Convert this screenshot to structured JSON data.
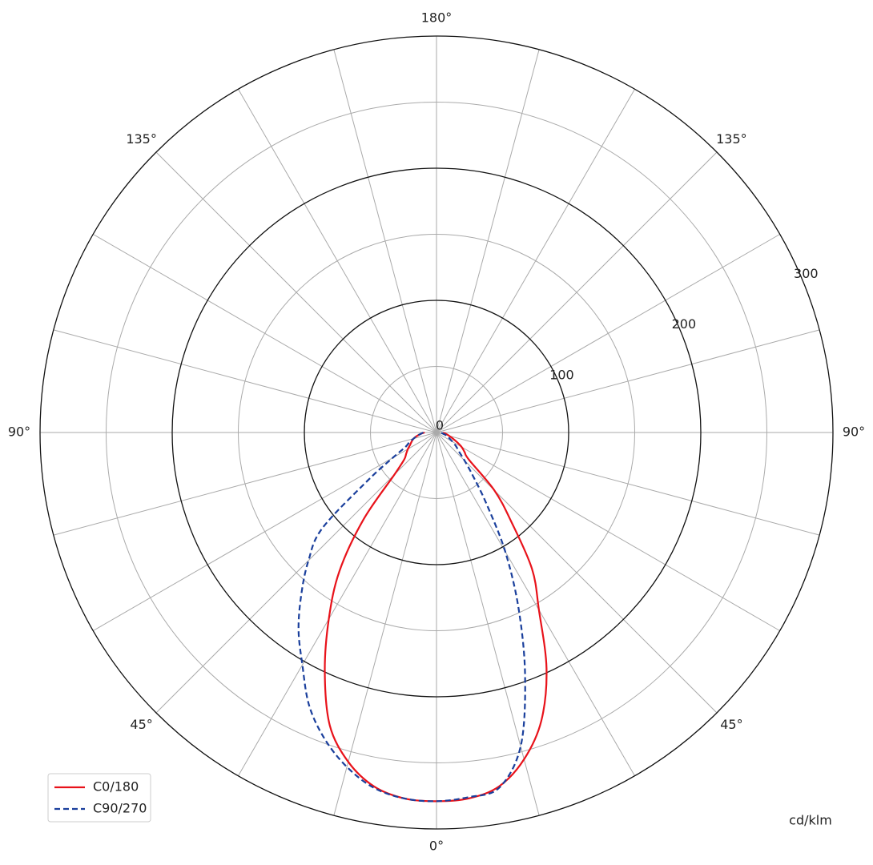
{
  "chart_data": {
    "type": "polar",
    "unit_label": "cd/klm",
    "angles": [
      -90,
      -85,
      -80,
      -75,
      -70,
      -65,
      -60,
      -55,
      -50,
      -45,
      -40,
      -35,
      -30,
      -25,
      -20,
      -15,
      -10,
      -5,
      0,
      5,
      10,
      15,
      20,
      25,
      30,
      35,
      40,
      45,
      50,
      55,
      60,
      65,
      70,
      75,
      80,
      85,
      90
    ],
    "series": [
      {
        "name": "C0/180",
        "color": "#e8121a",
        "dash": false,
        "values": [
          9,
          12,
          15,
          18,
          20,
          22,
          25,
          28,
          32,
          45,
          86,
          128,
          163,
          200,
          236,
          258,
          272,
          278,
          279,
          278,
          272,
          256,
          232,
          197,
          155,
          126,
          88,
          62,
          32,
          26,
          22,
          17,
          13,
          10,
          8,
          6,
          5
        ]
      },
      {
        "name": "C90/270",
        "color": "#1a3f9c",
        "dash": true,
        "values": [
          10,
          12,
          15,
          18,
          22,
          26,
          38,
          64,
          113,
          137,
          159,
          182,
          203,
          228,
          247,
          262,
          273,
          278,
          279,
          277,
          273,
          246,
          196,
          147,
          104,
          66,
          43,
          30,
          22,
          18,
          14,
          11,
          9,
          7,
          5,
          4,
          3
        ]
      }
    ],
    "rlim": [
      0,
      300
    ],
    "rticks": [
      0,
      100,
      200,
      300
    ],
    "minor_rticks": [
      50,
      150,
      250
    ],
    "angle_grid_step": 15,
    "angle_ticks": [
      {
        "value": 0,
        "label": "0°"
      },
      {
        "value": 45,
        "label": "45°"
      },
      {
        "value": 90,
        "label": "90°"
      },
      {
        "value": 135,
        "label": "135°"
      },
      {
        "value": 180,
        "label": "180°"
      }
    ],
    "legend": "lower left"
  }
}
